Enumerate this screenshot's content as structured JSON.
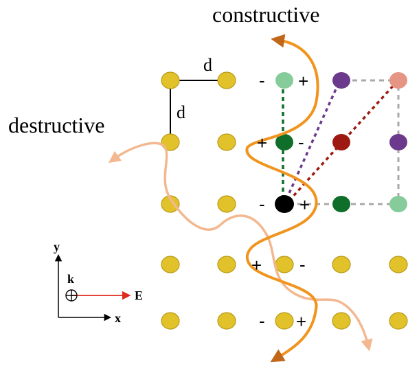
{
  "labels": {
    "constructive": "constructive",
    "destructive": "destructive",
    "spacing_horizontal": "d",
    "spacing_vertical": "d"
  },
  "axes": {
    "y": "y",
    "x": "x",
    "k": "k",
    "E": "E",
    "k_symbol": "⊕"
  },
  "signs": {
    "r0_left": "-",
    "r0_right": "+",
    "r1_left": "+",
    "r1_right": "-",
    "r2_left": "-",
    "r2_right": "+",
    "r3_left": "+",
    "r3_right": "-",
    "r4_left": "-",
    "r4_right": "+"
  },
  "colors": {
    "gold": "#e2c22a",
    "gold_edge": "#b99a16",
    "light_green": "#86cc9a",
    "dark_green": "#0f6e2a",
    "purple": "#6b3a8c",
    "salmon": "#e69585",
    "dark_red": "#9e1a10",
    "black": "#000000",
    "orange_wave": "#f0941e",
    "peach_wave": "#f3b890",
    "arrow_brown": "#c0671a",
    "e_field": "#e02a1e",
    "dashed_grey": "#a8a8a8"
  }
}
